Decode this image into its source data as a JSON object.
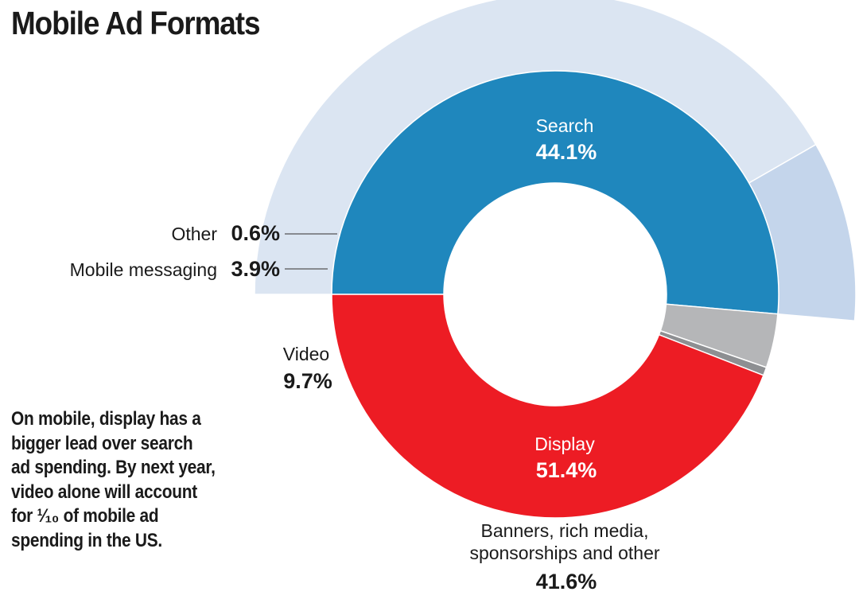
{
  "chart_data": {
    "type": "pie",
    "title": "Mobile Ad Formats",
    "inner_ring": [
      {
        "name": "Search",
        "value": 44.1,
        "label": "44.1%",
        "color": "#ed1c24"
      },
      {
        "name": "Display",
        "value": 51.4,
        "label": "51.4%",
        "color": "#1f87bd"
      },
      {
        "name": "Mobile messaging",
        "value": 3.9,
        "label": "3.9%",
        "color": "#b5b6b8"
      },
      {
        "name": "Other",
        "value": 0.6,
        "label": "0.6%",
        "color": "#8d8f92"
      }
    ],
    "outer_ring": [
      {
        "name": "Banners, rich media, sponsorships and other",
        "lines": [
          "Banners, rich media,",
          "sponsorships and other"
        ],
        "value": 41.6,
        "label": "41.6%",
        "color": "#dbe5f2"
      },
      {
        "name": "Video",
        "value": 9.7,
        "label": "9.7%",
        "color": "#c4d5eb"
      }
    ]
  },
  "note": {
    "lines": [
      "On mobile, display has a",
      "bigger lead over search",
      "ad spending. By next year,",
      "video alone will account",
      "for ¹⁄₁₀ of mobile ad",
      "spending in the US."
    ]
  }
}
